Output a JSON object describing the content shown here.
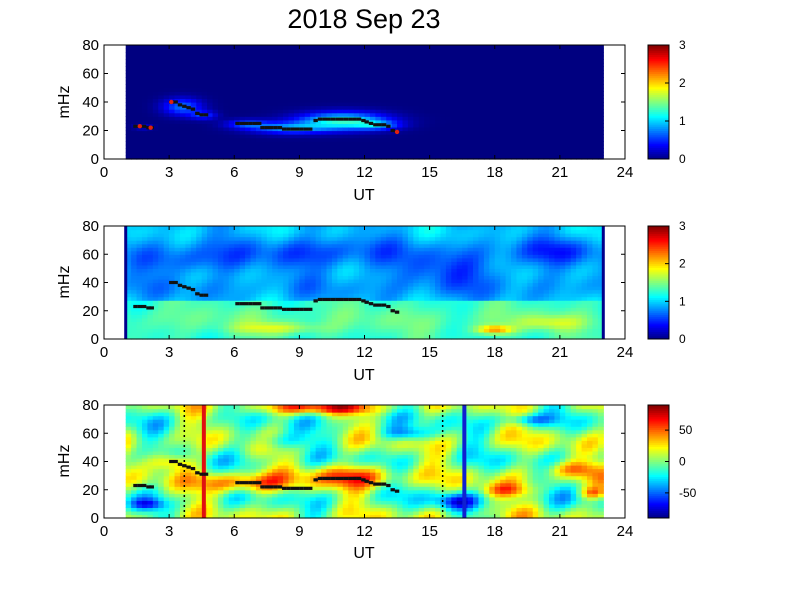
{
  "title": "2018 Sep 23",
  "chart_data": [
    {
      "type": "heatmap",
      "panel": "top",
      "xlabel": "UT",
      "ylabel": "mHz",
      "xlim": [
        0,
        24
      ],
      "ylim": [
        0,
        80
      ],
      "xticks": [
        "0",
        "3",
        "6",
        "9",
        "12",
        "15",
        "18",
        "21",
        "24"
      ],
      "yticks": [
        "0",
        "20",
        "40",
        "60",
        "80"
      ],
      "data_x_range": [
        1,
        23
      ],
      "colorbar": {
        "range": [
          0,
          3
        ],
        "ticks": [
          "0",
          "1",
          "2",
          "3"
        ]
      },
      "colormap": "jet",
      "background_value": 0,
      "blobs": [
        {
          "x": 3.6,
          "y": 37,
          "wx": 0.9,
          "wy": 6,
          "v": 0.7
        },
        {
          "x": 4.6,
          "y": 31,
          "wx": 0.6,
          "wy": 3,
          "v": 0.5
        },
        {
          "x": 6.6,
          "y": 25,
          "wx": 1.0,
          "wy": 3,
          "v": 0.55
        },
        {
          "x": 8.5,
          "y": 22,
          "wx": 1.8,
          "wy": 4,
          "v": 0.75
        },
        {
          "x": 11.0,
          "y": 27,
          "wx": 2.0,
          "wy": 6,
          "v": 1.25
        },
        {
          "x": 12.6,
          "y": 24,
          "wx": 1.0,
          "wy": 3,
          "v": 0.6
        },
        {
          "x": 1.8,
          "y": 23,
          "wx": 0.4,
          "wy": 2,
          "v": 0.3
        }
      ],
      "red_points": [
        {
          "x": 1.65,
          "y": 23
        },
        {
          "x": 2.15,
          "y": 22
        },
        {
          "x": 3.1,
          "y": 40
        },
        {
          "x": 13.5,
          "y": 19
        }
      ]
    },
    {
      "type": "heatmap",
      "panel": "middle",
      "xlabel": "UT",
      "ylabel": "mHz",
      "xlim": [
        0,
        24
      ],
      "ylim": [
        0,
        80
      ],
      "xticks": [
        "0",
        "3",
        "6",
        "9",
        "12",
        "15",
        "18",
        "21",
        "24"
      ],
      "yticks": [
        "0",
        "20",
        "40",
        "60",
        "80"
      ],
      "data_x_range": [
        1,
        23
      ],
      "colorbar": {
        "range": [
          0,
          3
        ],
        "ticks": [
          "0",
          "1",
          "2",
          "3"
        ]
      },
      "colormap": "jet",
      "background_value": 0.9,
      "low_freq_band": {
        "y_max": 28,
        "value": 1.35
      },
      "blobs": [
        {
          "x": 18.0,
          "y": 7,
          "wx": 0.8,
          "wy": 3,
          "v": 0.9
        },
        {
          "x": 8.0,
          "y": 8,
          "wx": 2.0,
          "wy": 4,
          "v": 0.4
        },
        {
          "x": 20.5,
          "y": 12,
          "wx": 1.5,
          "wy": 5,
          "v": 0.35
        },
        {
          "x": 4.0,
          "y": 55,
          "wx": 2.5,
          "wy": 10,
          "v": -0.35
        },
        {
          "x": 10.0,
          "y": 60,
          "wx": 3.0,
          "wy": 12,
          "v": -0.3
        },
        {
          "x": 16.0,
          "y": 50,
          "wx": 3.0,
          "wy": 12,
          "v": -0.35
        },
        {
          "x": 21.0,
          "y": 62,
          "wx": 2.0,
          "wy": 10,
          "v": -0.3
        }
      ],
      "red_points": []
    },
    {
      "type": "heatmap",
      "panel": "bottom",
      "xlabel": "UT",
      "ylabel": "mHz",
      "xlim": [
        0,
        24
      ],
      "ylim": [
        0,
        80
      ],
      "xticks": [
        "0",
        "3",
        "6",
        "9",
        "12",
        "15",
        "18",
        "21",
        "24"
      ],
      "yticks": [
        "0",
        "20",
        "40",
        "60",
        "80"
      ],
      "data_x_range": [
        1,
        23
      ],
      "colorbar": {
        "range": [
          -90,
          90
        ],
        "ticks": [
          "50",
          "0",
          "-50"
        ],
        "tick_values": [
          50,
          0,
          -50
        ]
      },
      "colormap": "jet",
      "background_value": 0,
      "blobs": [
        {
          "x": 6.5,
          "y": 25,
          "wx": 2.0,
          "wy": 7,
          "v": 55
        },
        {
          "x": 11.5,
          "y": 30,
          "wx": 2.0,
          "wy": 8,
          "v": 50
        },
        {
          "x": 10.0,
          "y": 78,
          "wx": 2.5,
          "wy": 4,
          "v": 60
        },
        {
          "x": 3.0,
          "y": 40,
          "wx": 1.0,
          "wy": 6,
          "v": 45
        },
        {
          "x": 14.0,
          "y": 60,
          "wx": 1.2,
          "wy": 5,
          "v": -45
        },
        {
          "x": 16.2,
          "y": 12,
          "wx": 1.0,
          "wy": 6,
          "v": -55
        },
        {
          "x": 19.5,
          "y": 70,
          "wx": 1.0,
          "wy": 4,
          "v": -40
        },
        {
          "x": 21.5,
          "y": 35,
          "wx": 1.2,
          "wy": 6,
          "v": 45
        },
        {
          "x": 8.0,
          "y": 55,
          "wx": 1.5,
          "wy": 6,
          "v": -35
        },
        {
          "x": 2.0,
          "y": 10,
          "wx": 0.8,
          "wy": 4,
          "v": -40
        },
        {
          "x": 18.5,
          "y": 20,
          "wx": 1.2,
          "wy": 5,
          "v": 40
        },
        {
          "x": 22.5,
          "y": 18,
          "wx": 0.6,
          "wy": 4,
          "v": 45
        }
      ],
      "red_points": [],
      "vertical_lines": [
        {
          "x": 4.6,
          "color": "#e01010",
          "style": "solid"
        },
        {
          "x": 16.6,
          "color": "#1020d0",
          "style": "solid"
        },
        {
          "x": 3.7,
          "color": "#000000",
          "style": "dotted"
        },
        {
          "x": 15.6,
          "color": "#000000",
          "style": "dotted"
        }
      ]
    }
  ],
  "track_points": [
    {
      "x": 1.45,
      "y": 23
    },
    {
      "x": 1.65,
      "y": 23
    },
    {
      "x": 1.85,
      "y": 23
    },
    {
      "x": 2.05,
      "y": 22
    },
    {
      "x": 2.2,
      "y": 22
    },
    {
      "x": 3.1,
      "y": 40
    },
    {
      "x": 3.3,
      "y": 40
    },
    {
      "x": 3.5,
      "y": 38
    },
    {
      "x": 3.7,
      "y": 37
    },
    {
      "x": 3.9,
      "y": 36
    },
    {
      "x": 4.1,
      "y": 35
    },
    {
      "x": 4.3,
      "y": 32
    },
    {
      "x": 4.5,
      "y": 31
    },
    {
      "x": 4.7,
      "y": 31
    },
    {
      "x": 6.15,
      "y": 25
    },
    {
      "x": 6.35,
      "y": 25
    },
    {
      "x": 6.55,
      "y": 25
    },
    {
      "x": 6.75,
      "y": 25
    },
    {
      "x": 6.95,
      "y": 25
    },
    {
      "x": 7.15,
      "y": 25
    },
    {
      "x": 7.3,
      "y": 22
    },
    {
      "x": 7.5,
      "y": 22
    },
    {
      "x": 7.7,
      "y": 22
    },
    {
      "x": 7.9,
      "y": 22
    },
    {
      "x": 8.1,
      "y": 22
    },
    {
      "x": 8.3,
      "y": 21
    },
    {
      "x": 8.5,
      "y": 21
    },
    {
      "x": 8.7,
      "y": 21
    },
    {
      "x": 8.9,
      "y": 21
    },
    {
      "x": 9.1,
      "y": 21
    },
    {
      "x": 9.3,
      "y": 21
    },
    {
      "x": 9.5,
      "y": 21
    },
    {
      "x": 9.75,
      "y": 27
    },
    {
      "x": 9.95,
      "y": 28
    },
    {
      "x": 10.15,
      "y": 28
    },
    {
      "x": 10.35,
      "y": 28
    },
    {
      "x": 10.55,
      "y": 28
    },
    {
      "x": 10.75,
      "y": 28
    },
    {
      "x": 10.95,
      "y": 28
    },
    {
      "x": 11.15,
      "y": 28
    },
    {
      "x": 11.35,
      "y": 28
    },
    {
      "x": 11.55,
      "y": 28
    },
    {
      "x": 11.75,
      "y": 28
    },
    {
      "x": 11.95,
      "y": 27
    },
    {
      "x": 12.1,
      "y": 26
    },
    {
      "x": 12.3,
      "y": 25
    },
    {
      "x": 12.5,
      "y": 24
    },
    {
      "x": 12.7,
      "y": 24
    },
    {
      "x": 12.9,
      "y": 24
    },
    {
      "x": 13.1,
      "y": 23
    },
    {
      "x": 13.3,
      "y": 20
    },
    {
      "x": 13.5,
      "y": 19
    }
  ]
}
